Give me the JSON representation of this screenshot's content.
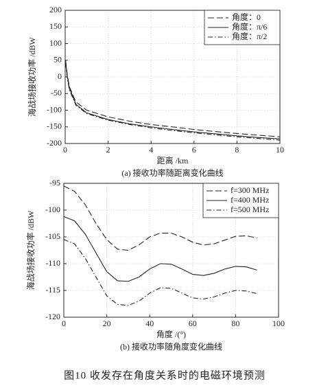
{
  "chart_data": [
    {
      "type": "line",
      "x_label": "距离 /km",
      "y_label": "海战场接收功率 /dBW",
      "caption": "(a)  接收功率随距离变化曲线",
      "x": [
        0.02,
        0.1,
        0.2,
        0.5,
        1,
        2,
        3,
        4,
        5,
        6,
        7,
        8,
        9,
        10
      ],
      "series": [
        {
          "name": "角度：0",
          "color": "#222",
          "dash": "dashed",
          "values": [
            50,
            5,
            -30,
            -75,
            -100,
            -120,
            -133,
            -143,
            -150,
            -158,
            -164,
            -170,
            -175,
            -180
          ]
        },
        {
          "name": "角度：π/6",
          "color": "#222",
          "dash": "solid",
          "values": [
            45,
            0,
            -35,
            -82,
            -108,
            -128,
            -141,
            -150,
            -158,
            -165,
            -171,
            -177,
            -182,
            -186
          ]
        },
        {
          "name": "角度：π/2",
          "color": "#222",
          "dash": "dashdot",
          "values": [
            40,
            -5,
            -40,
            -85,
            -110,
            -130,
            -143,
            -153,
            -161,
            -168,
            -174,
            -180,
            -185,
            -190
          ]
        }
      ],
      "xlim": [
        0,
        10
      ],
      "xticks": [
        0,
        2,
        4,
        6,
        8,
        10
      ],
      "ylim": [
        -200,
        200
      ],
      "yticks": [
        -200,
        -150,
        -100,
        -50,
        0,
        50,
        100,
        150,
        200
      ],
      "grid": true,
      "legend": "top-right"
    },
    {
      "type": "line",
      "x_label": "角度 /(°)",
      "y_label": "海战场接收功率 /dBW",
      "caption": "(b)  接收功率随角度变化曲线",
      "x": [
        0,
        5,
        10,
        15,
        20,
        25,
        30,
        35,
        40,
        45,
        50,
        55,
        60,
        65,
        70,
        75,
        80,
        85,
        90
      ],
      "series": [
        {
          "name": "f=300  MHz",
          "color": "#222",
          "dash": "dashed",
          "values": [
            -95.5,
            -96.5,
            -99,
            -102.5,
            -105.5,
            -107.3,
            -107.5,
            -106.5,
            -105,
            -104.3,
            -104.3,
            -105,
            -106,
            -106.5,
            -106.3,
            -105.6,
            -104.9,
            -104.8,
            -105.2
          ]
        },
        {
          "name": "f=400  MHz",
          "color": "#222",
          "dash": "solid",
          "values": [
            -101.2,
            -102,
            -104.5,
            -108,
            -111.5,
            -113.2,
            -113.3,
            -112.5,
            -111,
            -110,
            -110.1,
            -111,
            -112,
            -112.2,
            -111.8,
            -111,
            -110.5,
            -110.6,
            -111.2
          ]
        },
        {
          "name": "f=500  MHz",
          "color": "#222",
          "dash": "dashdot",
          "values": [
            -105.5,
            -106.3,
            -109,
            -112.5,
            -116,
            -117.6,
            -117.8,
            -117,
            -115.5,
            -114.5,
            -114.6,
            -115.5,
            -116.4,
            -116.6,
            -116.2,
            -115.5,
            -115,
            -115.1,
            -115.6
          ]
        }
      ],
      "xlim": [
        0,
        100
      ],
      "xticks": [
        0,
        20,
        40,
        60,
        80,
        100
      ],
      "ylim": [
        -120,
        -95
      ],
      "yticks": [
        -120,
        -115,
        -110,
        -105,
        -100,
        -95
      ],
      "grid": true,
      "legend": "top-right"
    }
  ],
  "figure_caption": "图10    收发存在角度关系时的电磁环境预测"
}
